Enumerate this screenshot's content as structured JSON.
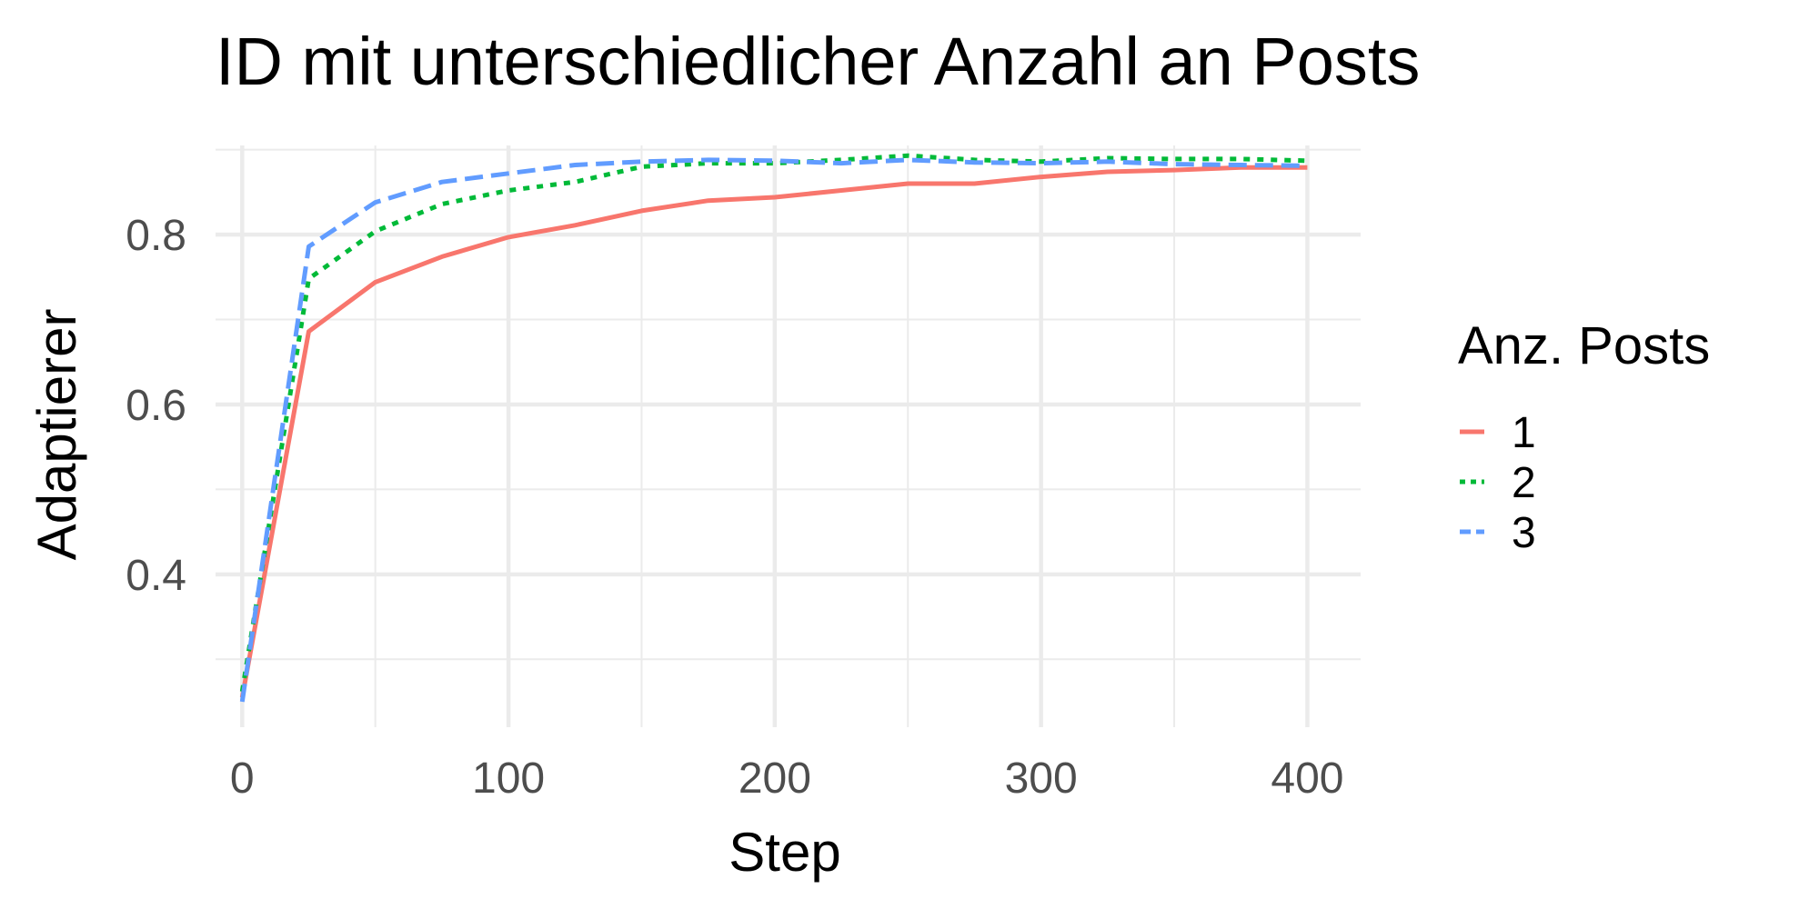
{
  "chart_data": {
    "type": "line",
    "title": "ID mit unterschiedlicher Anzahl an Posts",
    "xlabel": "Step",
    "ylabel": "Adaptierer",
    "xlim": [
      -10,
      420
    ],
    "ylim": [
      0.22,
      0.905
    ],
    "x_ticks": [
      0,
      100,
      200,
      300,
      400
    ],
    "x_tick_labels": [
      "0",
      "100",
      "200",
      "300",
      "400"
    ],
    "y_ticks": [
      0.4,
      0.6,
      0.8
    ],
    "y_tick_labels": [
      "0.4",
      "0.6",
      "0.8"
    ],
    "grid": true,
    "legend_title": "Anz. Posts",
    "legend_position": "right",
    "x": [
      0,
      25,
      50,
      75,
      100,
      125,
      150,
      175,
      200,
      225,
      250,
      275,
      300,
      325,
      350,
      375,
      400
    ],
    "series": [
      {
        "name": "1",
        "color": "#f8766d",
        "dash": "solid",
        "values": [
          0.255,
          0.686,
          0.744,
          0.774,
          0.797,
          0.811,
          0.828,
          0.84,
          0.844,
          0.852,
          0.86,
          0.86,
          0.868,
          0.874,
          0.876,
          0.879,
          0.879
        ]
      },
      {
        "name": "2",
        "color": "#00ba38",
        "dash": "dotted",
        "values": [
          0.262,
          0.748,
          0.804,
          0.836,
          0.852,
          0.862,
          0.88,
          0.884,
          0.884,
          0.888,
          0.893,
          0.888,
          0.886,
          0.89,
          0.889,
          0.889,
          0.887
        ]
      },
      {
        "name": "3",
        "color": "#619cff",
        "dash": "dashed",
        "values": [
          0.25,
          0.786,
          0.838,
          0.862,
          0.872,
          0.882,
          0.886,
          0.888,
          0.887,
          0.884,
          0.888,
          0.885,
          0.884,
          0.886,
          0.883,
          0.882,
          0.881
        ]
      }
    ]
  }
}
